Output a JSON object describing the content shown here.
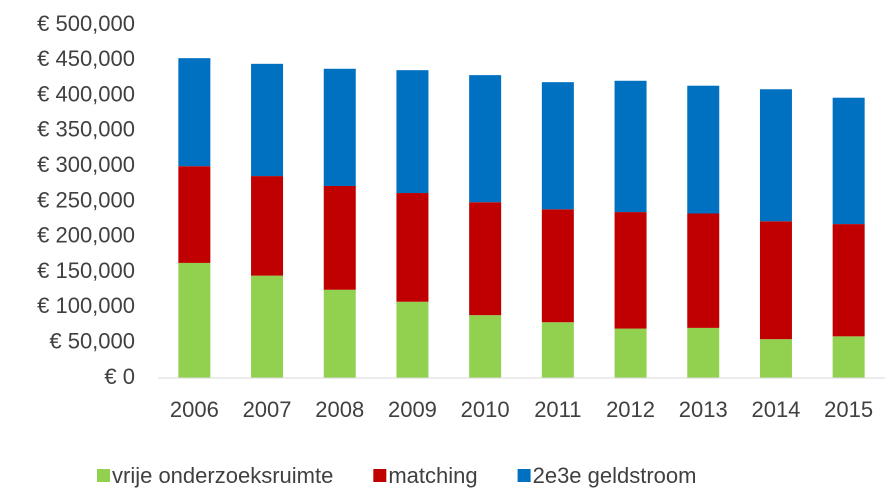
{
  "chart_data": {
    "type": "stacked_bar",
    "categories": [
      "2006",
      "2007",
      "2008",
      "2009",
      "2010",
      "2011",
      "2012",
      "2013",
      "2014",
      "2015"
    ],
    "series": [
      {
        "name": "vrije onderzoeksruimte",
        "color": "#92d050",
        "values": [
          163000,
          145000,
          125000,
          108000,
          89000,
          79000,
          70000,
          71000,
          55000,
          59000
        ]
      },
      {
        "name": "matching",
        "color": "#c00000",
        "values": [
          137000,
          141000,
          147000,
          154000,
          160000,
          160000,
          165000,
          162000,
          167000,
          159000
        ]
      },
      {
        "name": "2e3e geldstroom",
        "color": "#0070c0",
        "values": [
          153000,
          159000,
          166000,
          174000,
          180000,
          180000,
          186000,
          181000,
          187000,
          179000
        ]
      }
    ],
    "ylim": [
      0,
      500000
    ],
    "yticks": [
      {
        "value": 0,
        "label": "€ 0"
      },
      {
        "value": 50000,
        "label": "€ 50,000"
      },
      {
        "value": 100000,
        "label": "€ 100,000"
      },
      {
        "value": 150000,
        "label": "€ 150,000"
      },
      {
        "value": 200000,
        "label": "€ 200,000"
      },
      {
        "value": 250000,
        "label": "€ 250,000"
      },
      {
        "value": 300000,
        "label": "€ 300,000"
      },
      {
        "value": 350000,
        "label": "€ 350,000"
      },
      {
        "value": 400000,
        "label": "€ 400,000"
      },
      {
        "value": 450000,
        "label": "€ 450,000"
      },
      {
        "value": 500000,
        "label": "€ 500,000"
      }
    ],
    "grid": false,
    "legend": "bottom"
  }
}
